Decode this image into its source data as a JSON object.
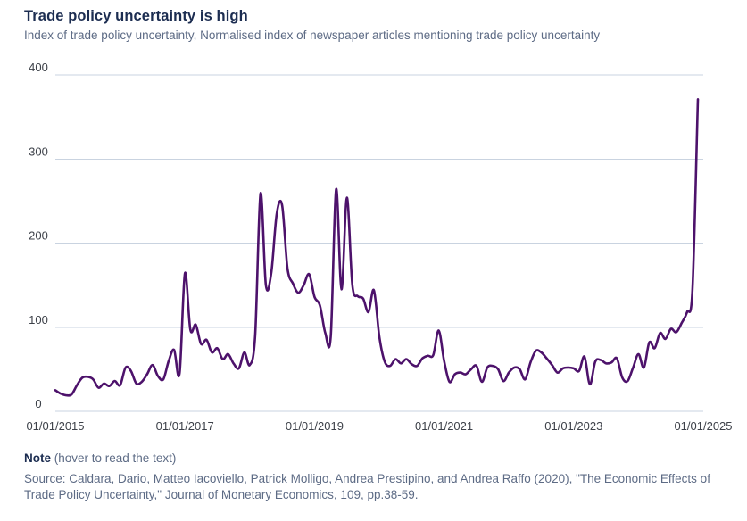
{
  "header": {
    "title": "Trade policy uncertainty is high",
    "subtitle": "Index of trade policy uncertainty, Normalised index of newspaper articles mentioning trade policy uncertainty"
  },
  "chart_data": {
    "type": "line",
    "title": "Trade policy uncertainty is high",
    "series_name": "Index of trade policy uncertainty",
    "x_start": "01/01/2015",
    "x_frequency": "monthly",
    "values": [
      25,
      21,
      19,
      20,
      31,
      40,
      41,
      38,
      28,
      33,
      30,
      36,
      31,
      52,
      48,
      33,
      35,
      44,
      55,
      42,
      38,
      60,
      73,
      45,
      164,
      97,
      103,
      80,
      85,
      70,
      75,
      62,
      68,
      57,
      51,
      70,
      55,
      90,
      259,
      150,
      165,
      235,
      245,
      170,
      152,
      141,
      150,
      163,
      136,
      126,
      93,
      89,
      264,
      145,
      254,
      150,
      137,
      134,
      118,
      144,
      89,
      59,
      54,
      62,
      57,
      62,
      56,
      54,
      63,
      66,
      67,
      96,
      60,
      35,
      44,
      46,
      44,
      50,
      54,
      35,
      52,
      54,
      50,
      36,
      46,
      52,
      50,
      38,
      58,
      72,
      70,
      63,
      55,
      46,
      51,
      52,
      51,
      48,
      65,
      32,
      59,
      61,
      57,
      58,
      63,
      40,
      36,
      52,
      68,
      52,
      82,
      75,
      93,
      86,
      98,
      94,
      105,
      118,
      145,
      371
    ],
    "ylim": [
      0,
      400
    ],
    "yticks": [
      0,
      100,
      200,
      300,
      400
    ],
    "xticks": [
      {
        "label": "01/01/2015",
        "month_index": 0
      },
      {
        "label": "01/01/2017",
        "month_index": 24
      },
      {
        "label": "01/01/2019",
        "month_index": 48
      },
      {
        "label": "01/01/2021",
        "month_index": 72
      },
      {
        "label": "01/01/2023",
        "month_index": 96
      },
      {
        "label": "01/01/2025",
        "month_index": 120
      }
    ],
    "grid": "horizontal",
    "legend": "none",
    "line_color": "#4d126b"
  },
  "footer": {
    "note_label": "Note",
    "note_hint": " (hover to read the text)",
    "source": "Source: Caldara, Dario, Matteo Iacoviello, Patrick Molligo, Andrea Prestipino, and Andrea Raffo (2020), \"The Economic Effects of Trade Policy Uncertainty,\" Journal of Monetary Economics, 109, pp.38-59."
  }
}
